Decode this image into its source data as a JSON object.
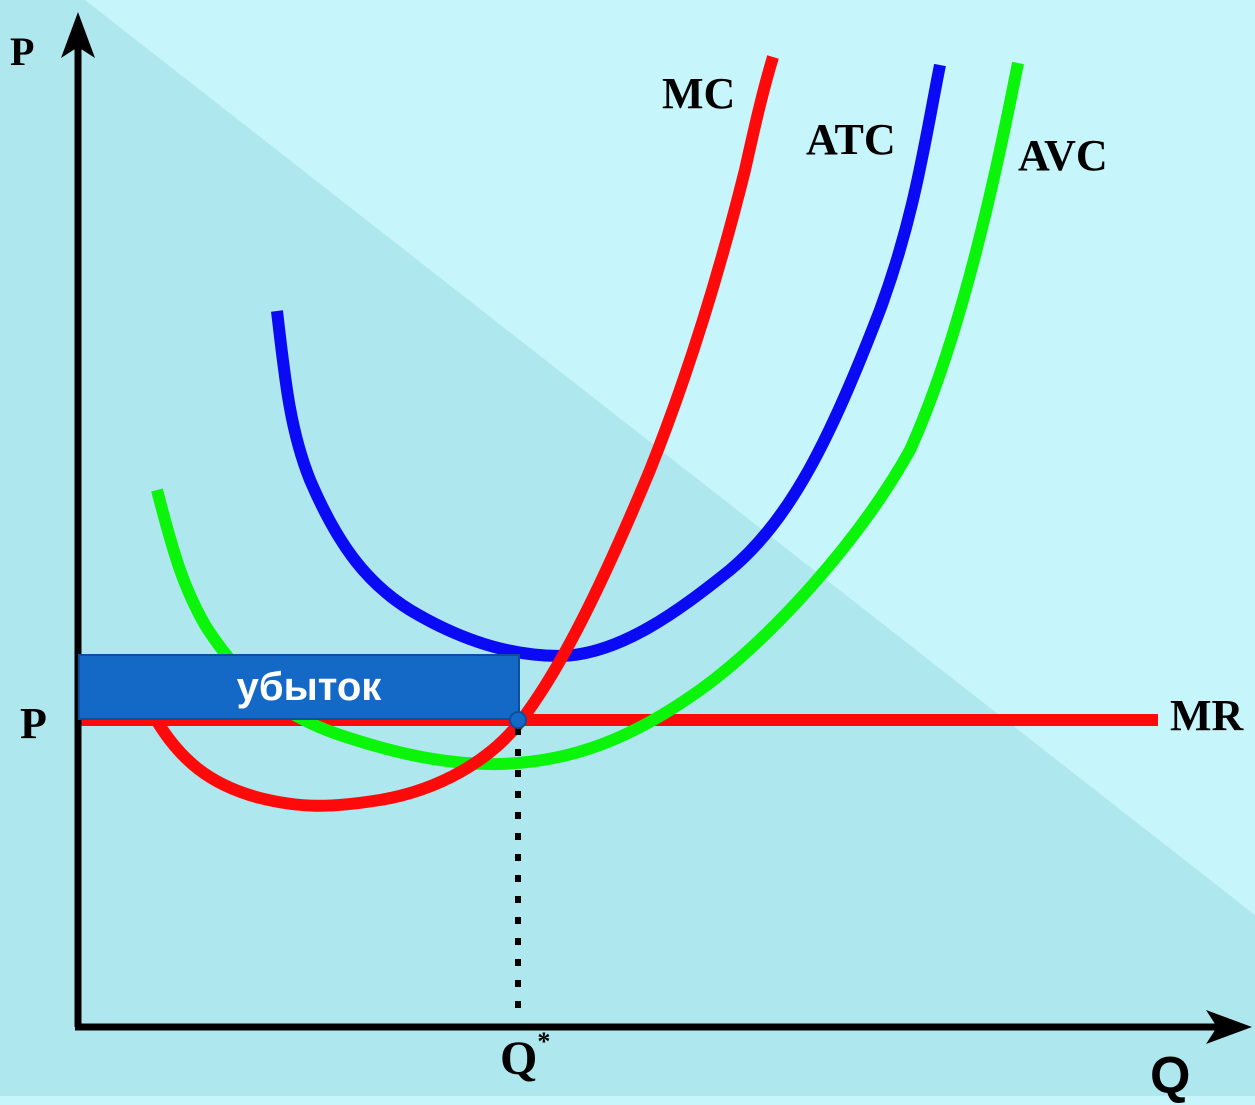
{
  "axes": {
    "y_label": "P",
    "x_label": "Q",
    "price_label": "P",
    "quantity_label": "Q",
    "quantity_superscript": "*"
  },
  "curves": {
    "mc": {
      "label": "MC",
      "color": "#ff0a0a"
    },
    "atc": {
      "label": "ATC",
      "color": "#0a0af5"
    },
    "avc": {
      "label": "AVC",
      "color": "#0af50a"
    },
    "mr": {
      "label": "MR",
      "color": "#ff0a0a"
    }
  },
  "loss_box": {
    "label": "убыток",
    "color": "#1469c6"
  },
  "colors": {
    "background": "#c6f6fb",
    "shade": "#aee8ee",
    "axis": "#000000"
  }
}
